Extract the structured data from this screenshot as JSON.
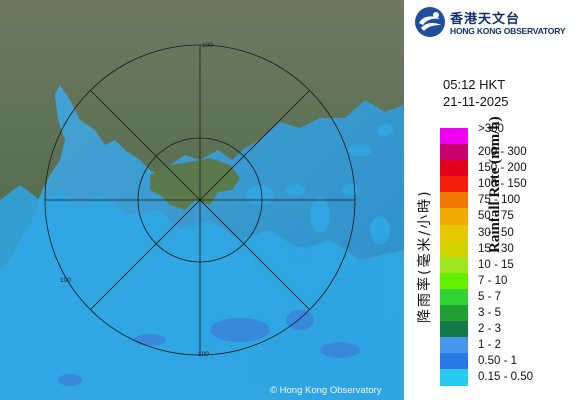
{
  "header": {
    "org_name_cn": "香港天文台",
    "org_name_en": "HONG KONG OBSERVATORY",
    "logo_icon": "hko-logo-icon"
  },
  "timestamp": {
    "time": "05:12 HKT",
    "date": "21-11-2025"
  },
  "legend": {
    "title_cn": "降雨率(毫米/小時)",
    "title_en": "Rainfall Rate (mm/h)",
    "items": [
      {
        "label": ">300",
        "color": "#f000f0"
      },
      {
        "label": "200 - 300",
        "color": "#c8006e"
      },
      {
        "label": "150 - 200",
        "color": "#e0001a"
      },
      {
        "label": "100 - 150",
        "color": "#f41e0a"
      },
      {
        "label": "75 - 100",
        "color": "#f07800"
      },
      {
        "label": "50 - 75",
        "color": "#f0aa00"
      },
      {
        "label": "30 - 50",
        "color": "#e6c800"
      },
      {
        "label": "15 - 30",
        "color": "#d2d200"
      },
      {
        "label": "10 - 15",
        "color": "#a0e61e"
      },
      {
        "label": "7 - 10",
        "color": "#64f000"
      },
      {
        "label": "5 - 7",
        "color": "#32d232"
      },
      {
        "label": "3 - 5",
        "color": "#1ea032"
      },
      {
        "label": "2 - 3",
        "color": "#147846"
      },
      {
        "label": "1 - 2",
        "color": "#4696f0"
      },
      {
        "label": "0.50 - 1",
        "color": "#2878e6"
      },
      {
        "label": "0.15 - 0.50",
        "color": "#28c8f0"
      }
    ]
  },
  "map": {
    "range_rings": [
      "100",
      "100",
      "100"
    ],
    "copyright": "© Hong Kong Observatory"
  }
}
